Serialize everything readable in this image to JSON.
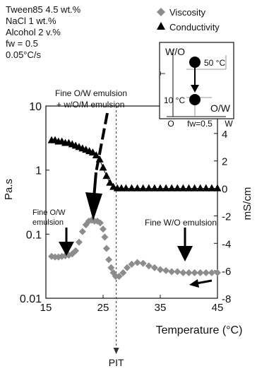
{
  "conditions": [
    "Tween85 4.5 wt.%",
    "NaCl 1 wt.%",
    "Alcohol 2 v.%",
    "fw = 0.5",
    "0.05°C/s"
  ],
  "legend": {
    "viscosity": "Viscosity",
    "conductivity": "Conductivity"
  },
  "inset": {
    "wo_label": "W/O",
    "ow_label": "O/W",
    "t_axis": "T",
    "temp_high": "50 °C",
    "temp_low": "10 °C",
    "x_left": "O",
    "x_right": "W",
    "fw": "fw=0.5"
  },
  "annotations": {
    "fine_ow_wom_1": "Fine O/W emulsion",
    "fine_ow_wom_2": "+ w/O/M emulsion",
    "fine_ow_1": "Fine O/W",
    "fine_ow_2": "emulsion",
    "fine_wo": "Fine W/O emulsion",
    "pit": "PIT"
  },
  "chart_data": {
    "type": "scatter",
    "xlabel": "Temperature (°C)",
    "ylabel_left": "Pa.s",
    "ylabel_right": "mS/cm",
    "xlim": [
      15,
      45
    ],
    "x_ticks": [
      15,
      25,
      35,
      45
    ],
    "y_left": {
      "scale": "log",
      "lim": [
        0.01,
        10
      ],
      "ticks": [
        "0.01",
        "0.1",
        "1",
        "10"
      ]
    },
    "y_right": {
      "lim": [
        -8,
        6
      ],
      "ticks": [
        "6",
        "4",
        "2",
        "0",
        "-2",
        "-4",
        "-6",
        "-8"
      ]
    },
    "pit_temperature": 27.3,
    "series": [
      {
        "name": "Viscosity",
        "marker": "diamond",
        "color": "#8c8c8c",
        "axis": "left",
        "points": [
          [
            16.0,
            0.045
          ],
          [
            16.6,
            0.044
          ],
          [
            17.2,
            0.044
          ],
          [
            17.8,
            0.045
          ],
          [
            18.4,
            0.046
          ],
          [
            19.0,
            0.047
          ],
          [
            19.6,
            0.049
          ],
          [
            20.2,
            0.055
          ],
          [
            20.8,
            0.075
          ],
          [
            21.4,
            0.11
          ],
          [
            22.0,
            0.14
          ],
          [
            22.5,
            0.16
          ],
          [
            23.0,
            0.165
          ],
          [
            23.5,
            0.16
          ],
          [
            24.0,
            0.16
          ],
          [
            24.5,
            0.15
          ],
          [
            25.0,
            0.12
          ],
          [
            25.3,
            0.09
          ],
          [
            25.6,
            0.06
          ],
          [
            26.0,
            0.04
          ],
          [
            26.4,
            0.03
          ],
          [
            26.8,
            0.025
          ],
          [
            27.2,
            0.022
          ],
          [
            27.8,
            0.022
          ],
          [
            28.5,
            0.025
          ],
          [
            29.2,
            0.03
          ],
          [
            30.0,
            0.034
          ],
          [
            31.0,
            0.036
          ],
          [
            32.0,
            0.035
          ],
          [
            33.0,
            0.032
          ],
          [
            34.0,
            0.03
          ],
          [
            35.0,
            0.028
          ],
          [
            36.0,
            0.027
          ],
          [
            37.0,
            0.026
          ],
          [
            38.0,
            0.026
          ],
          [
            39.0,
            0.025
          ],
          [
            40.0,
            0.025
          ],
          [
            41.0,
            0.025
          ],
          [
            42.0,
            0.025
          ],
          [
            43.0,
            0.025
          ],
          [
            44.0,
            0.025
          ],
          [
            45.0,
            0.025
          ]
        ]
      },
      {
        "name": "Conductivity",
        "marker": "triangle",
        "color": "#000000",
        "axis": "right",
        "points": [
          [
            16.0,
            3.5
          ],
          [
            16.6,
            3.5
          ],
          [
            17.2,
            3.4
          ],
          [
            17.8,
            3.4
          ],
          [
            18.4,
            3.3
          ],
          [
            19.0,
            3.3
          ],
          [
            19.6,
            3.2
          ],
          [
            20.2,
            3.1
          ],
          [
            20.8,
            3.0
          ],
          [
            21.4,
            2.9
          ],
          [
            22.0,
            2.8
          ],
          [
            22.6,
            2.7
          ],
          [
            23.2,
            2.6
          ],
          [
            23.8,
            2.4
          ],
          [
            24.4,
            2.1
          ],
          [
            25.0,
            1.5
          ],
          [
            25.6,
            0.9
          ],
          [
            26.2,
            0.4
          ],
          [
            26.8,
            0.1
          ],
          [
            27.5,
            0.0
          ],
          [
            28.2,
            0.0
          ],
          [
            29.0,
            0.0
          ],
          [
            30.0,
            0.0
          ],
          [
            31.0,
            0.0
          ],
          [
            32.0,
            0.0
          ],
          [
            33.0,
            0.0
          ],
          [
            34.0,
            0.0
          ],
          [
            35.0,
            0.0
          ],
          [
            36.0,
            0.0
          ],
          [
            37.0,
            0.0
          ],
          [
            38.0,
            0.0
          ],
          [
            39.0,
            0.0
          ],
          [
            40.0,
            0.0
          ],
          [
            41.0,
            0.0
          ],
          [
            42.0,
            0.0
          ],
          [
            43.0,
            0.0
          ],
          [
            44.0,
            0.0
          ],
          [
            45.0,
            0.0
          ]
        ]
      }
    ]
  }
}
